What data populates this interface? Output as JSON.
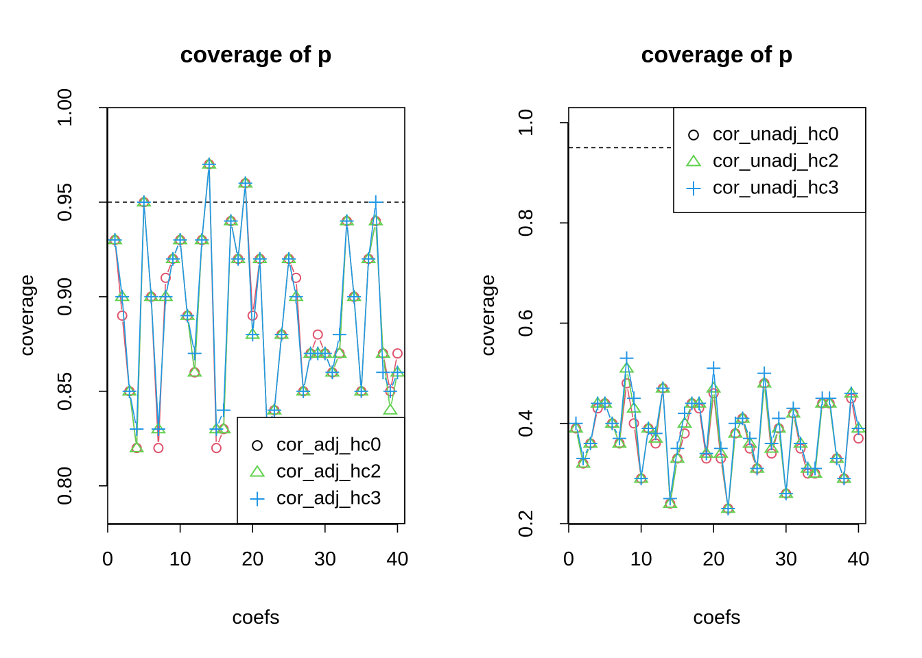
{
  "chart_data": [
    {
      "type": "line",
      "title": "coverage of p",
      "xlabel": "coefs",
      "ylabel": "coverage",
      "xlim": [
        0,
        41
      ],
      "ylim": [
        0.78,
        1.0
      ],
      "xticks": [
        0,
        10,
        20,
        30,
        40
      ],
      "xtick_labels": [
        "0",
        "10",
        "20",
        "30",
        "40"
      ],
      "yticks": [
        0.8,
        0.85,
        0.9,
        0.95,
        1.0
      ],
      "ytick_labels": [
        "0.80",
        "0.85",
        "0.90",
        "0.95",
        "1.00"
      ],
      "reference_line": 0.95,
      "legend_position": "bottom-right",
      "x": [
        1,
        2,
        3,
        4,
        5,
        6,
        7,
        8,
        9,
        10,
        11,
        12,
        13,
        14,
        15,
        16,
        17,
        18,
        19,
        20,
        21,
        22,
        23,
        24,
        25,
        26,
        27,
        28,
        29,
        30,
        31,
        32,
        33,
        34,
        35,
        36,
        37,
        38,
        39,
        40
      ],
      "series": [
        {
          "name": "cor_adj_hc0",
          "marker": "circle",
          "color": "#DF536B",
          "legend_color": "#000000",
          "values": [
            0.93,
            0.89,
            0.85,
            0.82,
            0.95,
            0.9,
            0.82,
            0.91,
            0.92,
            0.93,
            0.89,
            0.86,
            0.93,
            0.97,
            0.82,
            0.83,
            0.94,
            0.92,
            0.96,
            0.89,
            0.92,
            0.83,
            0.84,
            0.88,
            0.92,
            0.91,
            0.85,
            0.87,
            0.88,
            0.87,
            0.86,
            0.87,
            0.94,
            0.9,
            0.85,
            0.92,
            0.94,
            0.87,
            0.85,
            0.87
          ]
        },
        {
          "name": "cor_adj_hc2",
          "marker": "triangle",
          "color": "#61D04F",
          "values": [
            0.93,
            0.9,
            0.85,
            0.82,
            0.95,
            0.9,
            0.83,
            0.9,
            0.92,
            0.93,
            0.89,
            0.86,
            0.93,
            0.97,
            0.83,
            0.83,
            0.94,
            0.92,
            0.96,
            0.88,
            0.92,
            0.83,
            0.84,
            0.88,
            0.92,
            0.9,
            0.85,
            0.87,
            0.87,
            0.87,
            0.86,
            0.87,
            0.94,
            0.9,
            0.85,
            0.92,
            0.94,
            0.87,
            0.84,
            0.86
          ]
        },
        {
          "name": "cor_adj_hc3",
          "marker": "plus",
          "color": "#2297E6",
          "values": [
            0.93,
            0.9,
            0.85,
            0.83,
            0.95,
            0.9,
            0.83,
            0.9,
            0.92,
            0.93,
            0.89,
            0.87,
            0.93,
            0.97,
            0.83,
            0.84,
            0.94,
            0.92,
            0.96,
            0.88,
            0.92,
            0.83,
            0.84,
            0.88,
            0.92,
            0.9,
            0.85,
            0.87,
            0.87,
            0.87,
            0.86,
            0.88,
            0.94,
            0.9,
            0.85,
            0.92,
            0.95,
            0.86,
            0.85,
            0.86
          ]
        }
      ]
    },
    {
      "type": "line",
      "title": "coverage of p",
      "xlabel": "coefs",
      "ylabel": "coverage",
      "xlim": [
        0,
        41
      ],
      "ylim": [
        0.2,
        1.03
      ],
      "xticks": [
        0,
        10,
        20,
        30,
        40
      ],
      "xtick_labels": [
        "0",
        "10",
        "20",
        "30",
        "40"
      ],
      "yticks": [
        0.2,
        0.4,
        0.6,
        0.8,
        1.0
      ],
      "ytick_labels": [
        "0.2",
        "0.4",
        "0.6",
        "0.8",
        "1.0"
      ],
      "reference_line": 0.95,
      "legend_position": "top-right",
      "x": [
        1,
        2,
        3,
        4,
        5,
        6,
        7,
        8,
        9,
        10,
        11,
        12,
        13,
        14,
        15,
        16,
        17,
        18,
        19,
        20,
        21,
        22,
        23,
        24,
        25,
        26,
        27,
        28,
        29,
        30,
        31,
        32,
        33,
        34,
        35,
        36,
        37,
        38,
        39,
        40
      ],
      "series": [
        {
          "name": "cor_unadj_hc0",
          "marker": "circle",
          "color": "#DF536B",
          "legend_color": "#000000",
          "values": [
            0.39,
            0.32,
            0.36,
            0.43,
            0.44,
            0.4,
            0.36,
            0.48,
            0.4,
            0.29,
            0.39,
            0.36,
            0.47,
            0.24,
            0.33,
            0.38,
            0.44,
            0.43,
            0.33,
            0.46,
            0.33,
            0.23,
            0.38,
            0.41,
            0.35,
            0.31,
            0.48,
            0.34,
            0.39,
            0.26,
            0.42,
            0.35,
            0.3,
            0.3,
            0.44,
            0.44,
            0.33,
            0.29,
            0.45,
            0.37
          ]
        },
        {
          "name": "cor_unadj_hc2",
          "marker": "triangle",
          "color": "#61D04F",
          "values": [
            0.39,
            0.32,
            0.36,
            0.44,
            0.44,
            0.4,
            0.36,
            0.51,
            0.43,
            0.29,
            0.39,
            0.37,
            0.47,
            0.24,
            0.33,
            0.4,
            0.44,
            0.44,
            0.34,
            0.47,
            0.34,
            0.23,
            0.38,
            0.41,
            0.36,
            0.31,
            0.48,
            0.35,
            0.39,
            0.26,
            0.42,
            0.36,
            0.31,
            0.3,
            0.44,
            0.44,
            0.33,
            0.29,
            0.46,
            0.39
          ]
        },
        {
          "name": "cor_unadj_hc3",
          "marker": "plus",
          "color": "#2297E6",
          "values": [
            0.4,
            0.33,
            0.36,
            0.44,
            0.44,
            0.4,
            0.37,
            0.53,
            0.45,
            0.29,
            0.39,
            0.38,
            0.47,
            0.25,
            0.35,
            0.42,
            0.44,
            0.44,
            0.34,
            0.51,
            0.35,
            0.23,
            0.4,
            0.41,
            0.37,
            0.31,
            0.5,
            0.36,
            0.41,
            0.26,
            0.43,
            0.36,
            0.31,
            0.31,
            0.45,
            0.45,
            0.33,
            0.29,
            0.46,
            0.39
          ]
        }
      ]
    }
  ]
}
